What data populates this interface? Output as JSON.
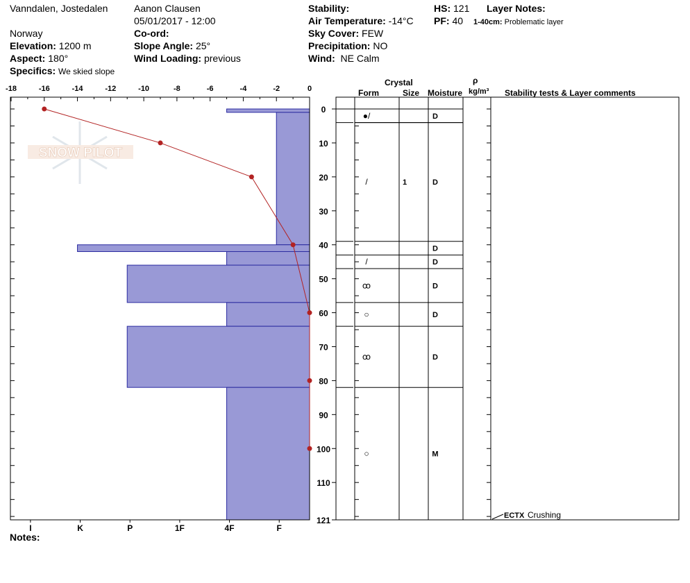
{
  "header": {
    "location": "Vanndalen, Jostedalen",
    "country": "Norway",
    "elevation_label": "Elevation:",
    "elevation": "1200 m",
    "aspect_label": "Aspect:",
    "aspect": "180°",
    "specifics_label": "Specifics:",
    "specifics": "We skied slope",
    "observer": "Aanon Clausen",
    "datetime": "05/01/2017 - 12:00",
    "coord_label": "Co-ord:",
    "slope_label": "Slope Angle:",
    "slope": "25°",
    "wind_loading_label": "Wind Loading:",
    "wind_loading": "previous",
    "stability_label": "Stability:",
    "air_temp_label": "Air Temperature:",
    "air_temp": "-14°C",
    "sky_label": "Sky Cover:",
    "sky": "FEW",
    "precip_label": "Precipitation:",
    "precip": "NO",
    "wind_label": "Wind:",
    "wind": "NE Calm",
    "hs_label": "HS:",
    "hs": "121",
    "pf_label": "PF:",
    "pf": "40",
    "layer_notes_label": "Layer Notes:",
    "layer_note_range": "1-40cm:",
    "layer_note_text": "Problematic layer",
    "notes_label": "Notes:"
  },
  "table_headers": {
    "crystal": "Crystal",
    "form": "Form",
    "size": "Size",
    "moisture": "Moisture",
    "rho": "ρ",
    "density_unit": "kg/m³",
    "stability": "Stability tests & Layer comments"
  },
  "watermark": "SNOW PILOT",
  "chart_data": {
    "type": "line",
    "title": "",
    "xlabel": "",
    "ylabel": "",
    "temp_axis": {
      "range": [
        -18,
        0
      ],
      "ticks": [
        -18,
        -16,
        -14,
        -12,
        -10,
        -8,
        -6,
        -4,
        -2,
        0
      ],
      "labels": [
        "-18",
        "-16",
        "-14",
        "-12",
        "-10",
        "-8",
        "-6",
        "-4",
        "-2",
        "0"
      ]
    },
    "depth_axis": {
      "range": [
        0,
        121
      ],
      "ticks": [
        0,
        10,
        20,
        30,
        40,
        50,
        60,
        70,
        80,
        90,
        100,
        110,
        121
      ],
      "labels": [
        "0",
        "10",
        "20",
        "30",
        "40",
        "50",
        "60",
        "70",
        "80",
        "90",
        "100",
        "110",
        "121"
      ]
    },
    "hardness_axis": {
      "labels": [
        "I",
        "K",
        "P",
        "1F",
        "4F",
        "F"
      ],
      "positions": [
        -17,
        -14,
        -11,
        -8,
        -5,
        -2
      ]
    },
    "temperature_profile": [
      {
        "depth": 0,
        "temp": -16
      },
      {
        "depth": 10,
        "temp": -9
      },
      {
        "depth": 20,
        "temp": -3.5
      },
      {
        "depth": 40,
        "temp": -1
      },
      {
        "depth": 60,
        "temp": 0
      },
      {
        "depth": 80,
        "temp": 0
      },
      {
        "depth": 100,
        "temp": 0
      }
    ],
    "hardness_layers": [
      {
        "top": 0,
        "bottom": 1,
        "hardness": "4F",
        "x": -5
      },
      {
        "top": 1,
        "bottom": 40,
        "hardness": "F",
        "x": -2
      },
      {
        "top": 40,
        "bottom": 42,
        "hardness": "K+",
        "x": -14
      },
      {
        "top": 42,
        "bottom": 46,
        "hardness": "4F",
        "x": -5
      },
      {
        "top": 46,
        "bottom": 57,
        "hardness": "P",
        "x": -11
      },
      {
        "top": 57,
        "bottom": 64,
        "hardness": "4F",
        "x": -5
      },
      {
        "top": 64,
        "bottom": 82,
        "hardness": "P",
        "x": -11
      },
      {
        "top": 82,
        "bottom": 121,
        "hardness": "4F",
        "x": -5
      }
    ],
    "layers": [
      {
        "top": 0,
        "bottom": 4,
        "form": "●/",
        "size": "",
        "moisture": "D"
      },
      {
        "top": 4,
        "bottom": 39,
        "form": "/",
        "size": "1",
        "moisture": "D"
      },
      {
        "top": 39,
        "bottom": 43,
        "form": "",
        "size": "",
        "moisture": "D"
      },
      {
        "top": 43,
        "bottom": 47,
        "form": "/",
        "size": "",
        "moisture": "D"
      },
      {
        "top": 47,
        "bottom": 57,
        "form": "ꝏ",
        "size": "",
        "moisture": "D"
      },
      {
        "top": 57,
        "bottom": 64,
        "form": "○",
        "size": "",
        "moisture": "D"
      },
      {
        "top": 64,
        "bottom": 82,
        "form": "ꝏ",
        "size": "",
        "moisture": "D"
      },
      {
        "top": 82,
        "bottom": 121,
        "form": "○",
        "size": "",
        "moisture": "M"
      }
    ],
    "stability_test": {
      "depth": 121,
      "code": "ECTX",
      "comment": "Crushing"
    }
  }
}
